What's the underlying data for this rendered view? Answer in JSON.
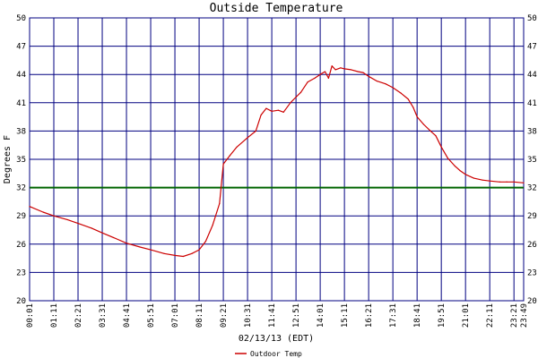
{
  "chart_data": {
    "type": "line",
    "title": "Outside Temperature",
    "xlabel": "02/13/13 (EDT)",
    "ylabel": "Degrees F",
    "ylim": [
      20,
      50
    ],
    "yticks": [
      20,
      23,
      26,
      29,
      32,
      35,
      38,
      41,
      44,
      47,
      50
    ],
    "xlim": [
      "00:01",
      "23:49"
    ],
    "xticks": [
      "00:01",
      "01:11",
      "02:21",
      "03:31",
      "04:41",
      "05:51",
      "07:01",
      "08:11",
      "09:21",
      "10:31",
      "11:41",
      "12:51",
      "14:01",
      "15:11",
      "16:21",
      "17:31",
      "18:41",
      "19:51",
      "21:01",
      "22:11",
      "23:21",
      "23:49"
    ],
    "grid": true,
    "reference_line": {
      "y": 32,
      "color": "#006400"
    },
    "legend": {
      "position": "bottom-center"
    },
    "series": [
      {
        "name": "Outdoor Temp",
        "color": "#cc0000",
        "points": [
          [
            "00:01",
            30.0
          ],
          [
            "00:40",
            29.4
          ],
          [
            "01:11",
            29.0
          ],
          [
            "01:50",
            28.6
          ],
          [
            "02:21",
            28.2
          ],
          [
            "03:00",
            27.7
          ],
          [
            "03:31",
            27.2
          ],
          [
            "04:10",
            26.6
          ],
          [
            "04:41",
            26.1
          ],
          [
            "05:20",
            25.7
          ],
          [
            "05:51",
            25.4
          ],
          [
            "06:30",
            25.0
          ],
          [
            "07:01",
            24.8
          ],
          [
            "07:25",
            24.7
          ],
          [
            "07:50",
            25.0
          ],
          [
            "08:11",
            25.4
          ],
          [
            "08:30",
            26.3
          ],
          [
            "08:50",
            28.0
          ],
          [
            "09:10",
            30.3
          ],
          [
            "09:21",
            34.5
          ],
          [
            "09:40",
            35.4
          ],
          [
            "10:00",
            36.3
          ],
          [
            "10:31",
            37.3
          ],
          [
            "10:55",
            38.0
          ],
          [
            "11:10",
            39.7
          ],
          [
            "11:25",
            40.4
          ],
          [
            "11:41",
            40.1
          ],
          [
            "12:00",
            40.2
          ],
          [
            "12:15",
            40.0
          ],
          [
            "12:35",
            41.0
          ],
          [
            "12:51",
            41.6
          ],
          [
            "13:05",
            42.1
          ],
          [
            "13:25",
            43.2
          ],
          [
            "13:45",
            43.6
          ],
          [
            "14:01",
            44.0
          ],
          [
            "14:15",
            44.3
          ],
          [
            "14:25",
            43.6
          ],
          [
            "14:35",
            44.9
          ],
          [
            "14:45",
            44.5
          ],
          [
            "15:00",
            44.7
          ],
          [
            "15:11",
            44.6
          ],
          [
            "15:30",
            44.5
          ],
          [
            "15:50",
            44.3
          ],
          [
            "16:05",
            44.2
          ],
          [
            "16:21",
            43.8
          ],
          [
            "16:45",
            43.3
          ],
          [
            "17:10",
            43.0
          ],
          [
            "17:31",
            42.6
          ],
          [
            "17:55",
            42.0
          ],
          [
            "18:15",
            41.4
          ],
          [
            "18:30",
            40.5
          ],
          [
            "18:41",
            39.5
          ],
          [
            "19:00",
            38.7
          ],
          [
            "19:20",
            38.0
          ],
          [
            "19:35",
            37.5
          ],
          [
            "19:51",
            36.3
          ],
          [
            "20:10",
            35.1
          ],
          [
            "20:30",
            34.3
          ],
          [
            "20:45",
            33.8
          ],
          [
            "21:01",
            33.4
          ],
          [
            "21:25",
            33.0
          ],
          [
            "21:50",
            32.8
          ],
          [
            "22:11",
            32.7
          ],
          [
            "22:40",
            32.6
          ],
          [
            "23:00",
            32.6
          ],
          [
            "23:21",
            32.6
          ],
          [
            "23:49",
            32.5
          ]
        ]
      }
    ]
  }
}
